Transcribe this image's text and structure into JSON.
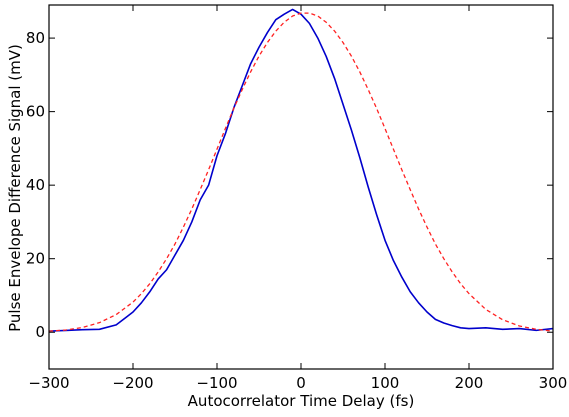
{
  "chart_data": {
    "type": "line",
    "xlabel": "Autocorrelator Time Delay (fs)",
    "ylabel": "Pulse Envelope Difference Signal (mV)",
    "xlim": [
      -300,
      300
    ],
    "ylim": [
      -10,
      89
    ],
    "xticks": [
      -300,
      -200,
      -100,
      0,
      100,
      200,
      300
    ],
    "yticks": [
      0,
      20,
      40,
      60,
      80
    ],
    "xtick_labels": [
      "−300",
      "−200",
      "−100",
      "0",
      "100",
      "200",
      "300"
    ],
    "ytick_labels": [
      "0",
      "20",
      "40",
      "60",
      "80"
    ],
    "grid": false,
    "legend": "none",
    "series": [
      {
        "style": "solid",
        "color": "#0000cc",
        "x": [
          -300,
          -280,
          -260,
          -240,
          -220,
          -200,
          -190,
          -180,
          -170,
          -160,
          -150,
          -140,
          -130,
          -120,
          -110,
          -100,
          -90,
          -80,
          -70,
          -60,
          -50,
          -40,
          -30,
          -20,
          -10,
          0,
          10,
          20,
          30,
          40,
          50,
          60,
          70,
          80,
          90,
          100,
          110,
          120,
          130,
          140,
          150,
          160,
          170,
          180,
          190,
          200,
          220,
          240,
          260,
          280,
          300
        ],
        "y": [
          0.3,
          0.5,
          0.7,
          0.8,
          2,
          5.5,
          8,
          11,
          14.5,
          17,
          21,
          25,
          30,
          36,
          40,
          48,
          54,
          61,
          67,
          73,
          77.5,
          81.5,
          85,
          86.5,
          87.8,
          86.5,
          84,
          80,
          75,
          69,
          62,
          55,
          47.5,
          39.5,
          32,
          25,
          19.5,
          15,
          11,
          8,
          5.5,
          3.5,
          2.5,
          1.8,
          1.2,
          1,
          1.2,
          0.8,
          1,
          0.5,
          1
        ]
      },
      {
        "style": "dashed",
        "color": "#ff2222",
        "x": [
          -300,
          -280,
          -260,
          -240,
          -220,
          -200,
          -190,
          -180,
          -170,
          -160,
          -150,
          -140,
          -130,
          -120,
          -110,
          -100,
          -90,
          -80,
          -70,
          -60,
          -50,
          -40,
          -30,
          -20,
          -10,
          0,
          10,
          20,
          30,
          40,
          50,
          60,
          70,
          80,
          90,
          100,
          110,
          120,
          130,
          140,
          150,
          160,
          170,
          180,
          190,
          200,
          220,
          240,
          260,
          280,
          300
        ],
        "y": [
          0.3,
          0.6,
          1.3,
          2.6,
          4.8,
          8.2,
          10.5,
          13.2,
          16.4,
          20,
          24,
          28.6,
          33.5,
          38.8,
          44.2,
          49.8,
          55.4,
          60.9,
          66,
          70.8,
          75.1,
          78.8,
          81.9,
          84.3,
          86,
          86.8,
          86.8,
          86,
          84.3,
          81.9,
          78.8,
          75.1,
          70.8,
          66,
          60.9,
          55.4,
          49.8,
          44.2,
          38.8,
          33.5,
          28.6,
          24,
          20,
          16.4,
          13.2,
          10.5,
          6.2,
          3.4,
          1.7,
          0.8,
          0.3
        ]
      }
    ]
  }
}
